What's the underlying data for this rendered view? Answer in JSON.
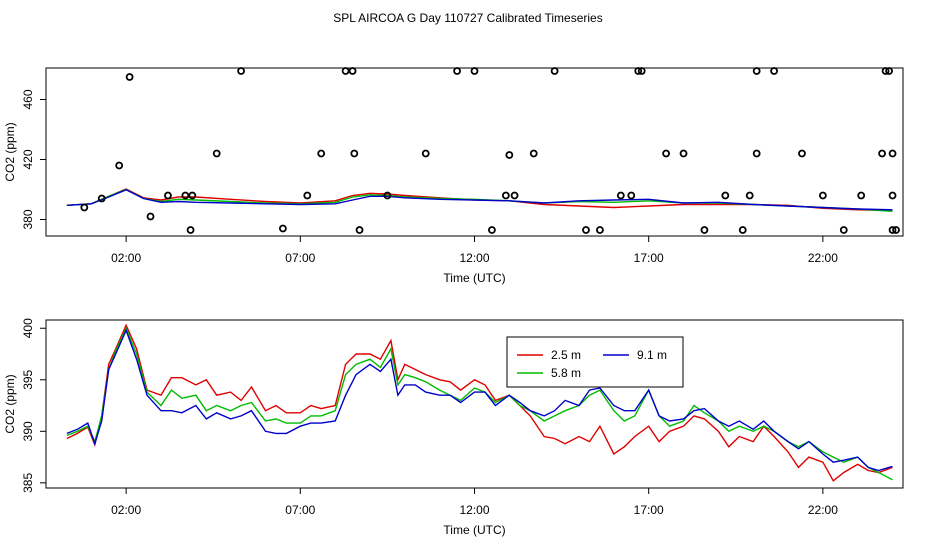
{
  "title": "SPL AIRCOA G  Day 110727  Calibrated Timeseries",
  "colors": {
    "c2_5": "#e00000",
    "c5_8": "#00bb00",
    "c9_1": "#0000cc",
    "axis": "#000000"
  },
  "chart_data": [
    {
      "type": "line",
      "panel": "top",
      "xlabel": "Time (UTC)",
      "ylabel": "CO2 (ppm)",
      "xlim": [
        -0.3,
        24.3
      ],
      "ylim": [
        369,
        481
      ],
      "xticks": [
        2,
        7,
        12,
        17,
        22
      ],
      "xtick_labels": [
        "02:00",
        "07:00",
        "12:00",
        "17:00",
        "22:00"
      ],
      "yticks": [
        380,
        420,
        460
      ],
      "ytick_labels": [
        "380",
        "420",
        "460"
      ],
      "series": [
        {
          "name": "2.5 m",
          "color": "#e00000",
          "x": [
            0.3,
            1.0,
            1.5,
            2.0,
            2.5,
            3.0,
            3.5,
            4.0,
            5.0,
            6.0,
            7.0,
            8.0,
            8.5,
            9.0,
            9.5,
            10.0,
            11.0,
            12.0,
            13.0,
            14.0,
            15.0,
            16.0,
            17.0,
            18.0,
            19.0,
            20.0,
            21.0,
            22.0,
            23.0,
            24.0
          ],
          "values": [
            389.5,
            390.5,
            395.5,
            400.3,
            394.5,
            393.0,
            395.0,
            395.0,
            393.5,
            392.0,
            391.0,
            392.5,
            396.0,
            397.5,
            397.0,
            396.0,
            394.5,
            393.0,
            392.5,
            390.0,
            389.0,
            388.0,
            389.0,
            390.0,
            390.0,
            390.0,
            389.5,
            387.5,
            386.5,
            386.0
          ]
        },
        {
          "name": "5.8 m",
          "color": "#00bb00",
          "x": [
            0.3,
            1.0,
            1.5,
            2.0,
            2.5,
            3.0,
            3.5,
            4.0,
            5.0,
            6.0,
            7.0,
            8.0,
            8.5,
            9.0,
            9.5,
            10.0,
            11.0,
            12.0,
            13.0,
            14.0,
            15.0,
            16.0,
            17.0,
            18.0,
            19.0,
            20.0,
            21.0,
            22.0,
            23.0,
            24.0
          ],
          "values": [
            389.5,
            390.5,
            395.5,
            400.0,
            394.0,
            392.0,
            393.5,
            393.0,
            392.0,
            391.0,
            390.5,
            391.5,
            395.0,
            396.5,
            396.0,
            395.0,
            394.0,
            393.5,
            392.5,
            391.0,
            392.0,
            391.5,
            392.5,
            391.0,
            391.0,
            390.0,
            389.0,
            388.0,
            387.0,
            385.5
          ]
        },
        {
          "name": "9.1 m",
          "color": "#0000cc",
          "x": [
            0.3,
            1.0,
            1.5,
            2.0,
            2.5,
            3.0,
            3.5,
            4.0,
            5.0,
            6.0,
            7.0,
            8.0,
            8.5,
            9.0,
            9.5,
            10.0,
            11.0,
            12.0,
            13.0,
            14.0,
            15.0,
            16.0,
            17.0,
            18.0,
            19.0,
            20.0,
            21.0,
            22.0,
            23.0,
            24.0
          ],
          "values": [
            389.5,
            390.5,
            395.0,
            399.8,
            394.0,
            391.5,
            392.0,
            391.5,
            391.0,
            390.5,
            390.0,
            390.5,
            393.0,
            395.5,
            395.5,
            394.5,
            393.5,
            393.0,
            392.5,
            391.0,
            392.5,
            393.0,
            393.5,
            391.0,
            391.5,
            390.0,
            389.0,
            388.0,
            387.0,
            386.5
          ]
        }
      ],
      "flagged_points": {
        "x": [
          0.8,
          1.3,
          1.8,
          2.1,
          2.7,
          3.2,
          3.7,
          3.85,
          3.9,
          4.6,
          5.3,
          6.5,
          7.2,
          7.6,
          8.3,
          8.5,
          8.55,
          8.7,
          9.5,
          10.6,
          11.5,
          12.0,
          12.5,
          12.9,
          13.0,
          13.15,
          13.7,
          14.3,
          15.2,
          15.6,
          16.2,
          16.5,
          16.7,
          16.8,
          17.5,
          18.0,
          18.6,
          19.2,
          19.7,
          19.9,
          20.1,
          20.1,
          20.6,
          21.4,
          22.0,
          22.6,
          23.1,
          23.7,
          23.8,
          23.9,
          24.0,
          24.0,
          24.0,
          24.1
        ],
        "values": [
          388,
          394,
          416,
          475,
          382,
          396,
          396,
          373,
          396,
          424,
          479,
          374,
          396,
          424,
          479,
          479,
          424,
          373,
          396,
          424,
          479,
          479,
          373,
          396,
          423,
          396,
          424,
          479,
          373,
          373,
          396,
          396,
          479,
          479,
          424,
          424,
          373,
          396,
          373,
          396,
          424,
          479,
          479,
          424,
          396,
          373,
          396,
          424,
          479,
          479,
          373,
          424,
          396,
          373
        ]
      }
    },
    {
      "type": "line",
      "panel": "bottom",
      "xlabel": "Time (UTC)",
      "ylabel": "CO2 (ppm)",
      "xlim": [
        -0.3,
        24.3
      ],
      "ylim": [
        384.5,
        400.8
      ],
      "xticks": [
        2,
        7,
        12,
        17,
        22
      ],
      "xtick_labels": [
        "02:00",
        "07:00",
        "12:00",
        "17:00",
        "22:00"
      ],
      "yticks": [
        385,
        390,
        395,
        400
      ],
      "ytick_labels": [
        "385",
        "390",
        "395",
        "400"
      ],
      "legend": {
        "position": "top-right",
        "entries": [
          "2.5 m",
          "9.1 m",
          "5.8 m"
        ]
      },
      "series": [
        {
          "name": "2.5 m",
          "color": "#e00000",
          "x": [
            0.3,
            0.6,
            0.9,
            1.1,
            1.3,
            1.5,
            1.7,
            2.0,
            2.3,
            2.6,
            3.0,
            3.3,
            3.6,
            4.0,
            4.3,
            4.6,
            5.0,
            5.3,
            5.6,
            6.0,
            6.3,
            6.6,
            7.0,
            7.3,
            7.6,
            8.0,
            8.3,
            8.6,
            9.0,
            9.3,
            9.6,
            9.8,
            10.0,
            10.3,
            10.6,
            11.0,
            11.3,
            11.6,
            12.0,
            12.3,
            12.6,
            13.0,
            13.3,
            13.6,
            14.0,
            14.3,
            14.6,
            15.0,
            15.3,
            15.6,
            16.0,
            16.3,
            16.6,
            17.0,
            17.3,
            17.6,
            18.0,
            18.3,
            18.6,
            19.0,
            19.3,
            19.6,
            20.0,
            20.3,
            20.6,
            21.0,
            21.3,
            21.6,
            22.0,
            22.3,
            22.6,
            23.0,
            23.3,
            23.6,
            24.0
          ],
          "values": [
            389.3,
            389.8,
            390.4,
            388.7,
            391.5,
            396.5,
            398.0,
            400.3,
            398.0,
            394.0,
            393.5,
            395.2,
            395.2,
            394.5,
            395.0,
            393.5,
            393.8,
            393.0,
            394.3,
            392.0,
            392.5,
            391.8,
            391.8,
            392.5,
            392.2,
            392.5,
            396.5,
            397.5,
            397.5,
            397.0,
            398.8,
            395.0,
            396.5,
            396.0,
            395.5,
            395.0,
            394.8,
            394.0,
            395.0,
            394.5,
            393.0,
            393.5,
            392.5,
            391.5,
            389.5,
            389.3,
            388.8,
            389.5,
            389.0,
            390.5,
            387.8,
            388.5,
            389.5,
            390.5,
            389.0,
            390.0,
            390.5,
            391.5,
            391.2,
            390.0,
            388.5,
            389.5,
            389.0,
            390.5,
            389.5,
            388.0,
            386.5,
            387.5,
            387.0,
            385.2,
            386.0,
            386.8,
            386.2,
            386.0,
            386.5
          ]
        },
        {
          "name": "5.8 m",
          "color": "#00bb00",
          "x": [
            0.3,
            0.6,
            0.9,
            1.1,
            1.3,
            1.5,
            1.7,
            2.0,
            2.3,
            2.6,
            3.0,
            3.3,
            3.6,
            4.0,
            4.3,
            4.6,
            5.0,
            5.3,
            5.6,
            6.0,
            6.3,
            6.6,
            7.0,
            7.3,
            7.6,
            8.0,
            8.3,
            8.6,
            9.0,
            9.3,
            9.6,
            9.8,
            10.0,
            10.3,
            10.6,
            11.0,
            11.3,
            11.6,
            12.0,
            12.3,
            12.6,
            13.0,
            13.3,
            13.6,
            14.0,
            14.3,
            14.6,
            15.0,
            15.3,
            15.6,
            16.0,
            16.3,
            16.6,
            17.0,
            17.3,
            17.6,
            18.0,
            18.3,
            18.6,
            19.0,
            19.3,
            19.6,
            20.0,
            20.3,
            20.6,
            21.0,
            21.3,
            21.6,
            22.0,
            22.3,
            22.6,
            23.0,
            23.3,
            23.6,
            24.0
          ],
          "values": [
            389.6,
            390.0,
            390.5,
            389.0,
            391.5,
            396.0,
            397.8,
            400.0,
            397.5,
            393.8,
            392.5,
            394.0,
            393.2,
            393.5,
            392.0,
            392.5,
            392.0,
            392.5,
            392.8,
            391.0,
            391.2,
            390.8,
            390.8,
            391.5,
            391.5,
            392.0,
            395.5,
            396.5,
            397.0,
            396.2,
            398.0,
            394.5,
            395.5,
            395.2,
            394.8,
            394.0,
            393.5,
            393.0,
            394.2,
            393.8,
            392.8,
            393.5,
            392.5,
            392.0,
            391.0,
            391.5,
            392.0,
            392.5,
            393.5,
            394.0,
            392.0,
            391.0,
            391.5,
            394.0,
            391.5,
            390.5,
            391.0,
            392.5,
            391.8,
            391.0,
            390.0,
            390.5,
            390.0,
            390.5,
            390.0,
            389.0,
            388.5,
            389.0,
            388.0,
            387.5,
            387.0,
            387.5,
            386.5,
            386.0,
            385.3
          ]
        },
        {
          "name": "9.1 m",
          "color": "#0000cc",
          "x": [
            0.3,
            0.6,
            0.9,
            1.1,
            1.3,
            1.5,
            1.7,
            2.0,
            2.3,
            2.6,
            3.0,
            3.3,
            3.6,
            4.0,
            4.3,
            4.6,
            5.0,
            5.3,
            5.6,
            6.0,
            6.3,
            6.6,
            7.0,
            7.3,
            7.6,
            8.0,
            8.3,
            8.6,
            9.0,
            9.3,
            9.6,
            9.8,
            10.0,
            10.3,
            10.6,
            11.0,
            11.3,
            11.6,
            12.0,
            12.3,
            12.6,
            13.0,
            13.3,
            13.6,
            14.0,
            14.3,
            14.6,
            15.0,
            15.3,
            15.6,
            16.0,
            16.3,
            16.6,
            17.0,
            17.3,
            17.6,
            18.0,
            18.3,
            18.6,
            19.0,
            19.3,
            19.6,
            20.0,
            20.3,
            20.6,
            21.0,
            21.3,
            21.6,
            22.0,
            22.3,
            22.6,
            23.0,
            23.3,
            23.6,
            24.0
          ],
          "values": [
            389.8,
            390.2,
            390.8,
            388.8,
            391.0,
            396.0,
            397.5,
            399.8,
            397.0,
            393.5,
            392.0,
            392.0,
            391.8,
            392.5,
            391.2,
            391.8,
            391.2,
            391.5,
            392.0,
            390.0,
            389.8,
            389.8,
            390.5,
            390.8,
            390.8,
            391.0,
            393.5,
            395.5,
            396.5,
            395.8,
            397.0,
            393.5,
            394.5,
            394.5,
            393.8,
            393.5,
            393.5,
            392.8,
            393.8,
            393.8,
            392.5,
            393.5,
            392.8,
            392.0,
            391.5,
            392.0,
            393.0,
            392.5,
            394.0,
            394.2,
            392.5,
            392.0,
            392.0,
            394.0,
            391.5,
            391.0,
            391.2,
            392.0,
            392.2,
            391.0,
            390.5,
            391.0,
            390.2,
            391.0,
            390.0,
            389.0,
            388.3,
            389.0,
            387.8,
            387.0,
            387.2,
            387.5,
            386.5,
            386.2,
            386.6
          ]
        }
      ]
    }
  ]
}
